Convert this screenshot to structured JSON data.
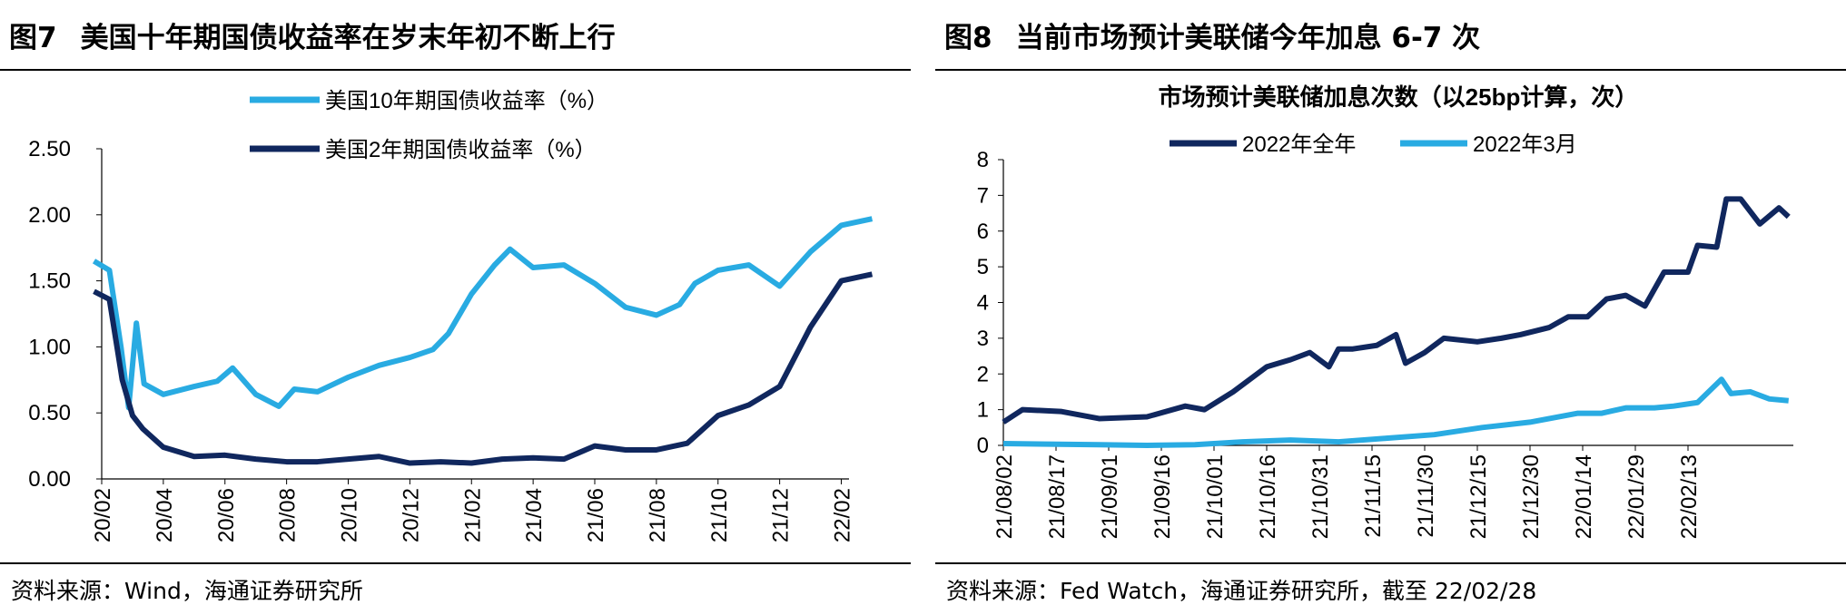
{
  "colors": {
    "light": "#29abe2",
    "dark": "#10275e"
  },
  "left": {
    "fig_no": "图7",
    "title": "美国十年期国债收益率在岁末年初不断上行",
    "source": "资料来源：Wind，海通证券研究所"
  },
  "right": {
    "fig_no": "图8",
    "title": "当前市场预计美联储今年加息 6-7 次",
    "source": "资料来源：Fed Watch，海通证券研究所，截至 22/02/28"
  },
  "chart_data": [
    {
      "type": "line",
      "title": "",
      "ylim": [
        0,
        2.5
      ],
      "yticks": [
        "0.00",
        "0.50",
        "1.00",
        "1.50",
        "2.00",
        "2.50"
      ],
      "xticks": [
        "20/02",
        "20/04",
        "20/06",
        "20/08",
        "20/10",
        "20/12",
        "21/02",
        "21/04",
        "21/06",
        "21/08",
        "21/10",
        "21/12",
        "22/02"
      ],
      "legend": "top-center",
      "series": [
        {
          "name": "美国10年期国债收益率（%）",
          "color": "light",
          "points": [
            [
              "20/02",
              1.65
            ],
            [
              "20/02",
              1.58
            ],
            [
              "20/03",
              1.0
            ],
            [
              "20/03",
              0.54
            ],
            [
              "20/03",
              1.18
            ],
            [
              "20/03",
              0.72
            ],
            [
              "20/04",
              0.64
            ],
            [
              "20/05",
              0.7
            ],
            [
              "20/06",
              0.74
            ],
            [
              "20/06",
              0.84
            ],
            [
              "20/07",
              0.64
            ],
            [
              "20/08",
              0.55
            ],
            [
              "20/08",
              0.68
            ],
            [
              "20/09",
              0.66
            ],
            [
              "20/10",
              0.77
            ],
            [
              "20/11",
              0.86
            ],
            [
              "20/12",
              0.92
            ],
            [
              "21/01",
              0.98
            ],
            [
              "21/01",
              1.1
            ],
            [
              "21/02",
              1.4
            ],
            [
              "21/03",
              1.62
            ],
            [
              "21/03",
              1.74
            ],
            [
              "21/04",
              1.6
            ],
            [
              "21/05",
              1.62
            ],
            [
              "21/06",
              1.48
            ],
            [
              "21/07",
              1.3
            ],
            [
              "21/08",
              1.24
            ],
            [
              "21/09",
              1.32
            ],
            [
              "21/09",
              1.48
            ],
            [
              "21/10",
              1.58
            ],
            [
              "21/11",
              1.62
            ],
            [
              "21/12",
              1.46
            ],
            [
              "22/01",
              1.72
            ],
            [
              "22/02",
              1.92
            ],
            [
              "22/03",
              1.97
            ]
          ]
        },
        {
          "name": "美国2年期国债收益率（%）",
          "color": "dark",
          "points": [
            [
              "20/02",
              1.42
            ],
            [
              "20/02",
              1.36
            ],
            [
              "20/03",
              0.75
            ],
            [
              "20/03",
              0.48
            ],
            [
              "20/03",
              0.38
            ],
            [
              "20/04",
              0.24
            ],
            [
              "20/05",
              0.17
            ],
            [
              "20/06",
              0.18
            ],
            [
              "20/07",
              0.15
            ],
            [
              "20/08",
              0.13
            ],
            [
              "20/09",
              0.13
            ],
            [
              "20/10",
              0.15
            ],
            [
              "20/11",
              0.17
            ],
            [
              "20/12",
              0.12
            ],
            [
              "21/01",
              0.13
            ],
            [
              "21/02",
              0.12
            ],
            [
              "21/03",
              0.15
            ],
            [
              "21/04",
              0.16
            ],
            [
              "21/05",
              0.15
            ],
            [
              "21/06",
              0.25
            ],
            [
              "21/07",
              0.22
            ],
            [
              "21/08",
              0.22
            ],
            [
              "21/09",
              0.27
            ],
            [
              "21/10",
              0.48
            ],
            [
              "21/11",
              0.56
            ],
            [
              "21/12",
              0.7
            ],
            [
              "22/01",
              1.15
            ],
            [
              "22/02",
              1.5
            ],
            [
              "22/03",
              1.55
            ]
          ]
        }
      ]
    },
    {
      "type": "line",
      "title": "市场预计美联储加息次数（以25bp计算，次）",
      "ylim": [
        0,
        8
      ],
      "yticks": [
        "0",
        "1",
        "2",
        "3",
        "4",
        "5",
        "6",
        "7",
        "8"
      ],
      "xticks": [
        "21/08/02",
        "21/08/17",
        "21/09/01",
        "21/09/16",
        "21/10/01",
        "21/10/16",
        "21/10/31",
        "21/11/15",
        "21/11/30",
        "21/12/15",
        "21/12/30",
        "22/01/14",
        "22/01/29",
        "22/02/13"
      ],
      "legend": "top-center",
      "series": [
        {
          "name": "2022年全年",
          "color": "dark",
          "points": [
            [
              0,
              0.65
            ],
            [
              4,
              1.0
            ],
            [
              12,
              0.95
            ],
            [
              20,
              0.75
            ],
            [
              30,
              0.8
            ],
            [
              38,
              1.1
            ],
            [
              42,
              1.0
            ],
            [
              48,
              1.5
            ],
            [
              55,
              2.2
            ],
            [
              60,
              2.4
            ],
            [
              64,
              2.6
            ],
            [
              68,
              2.2
            ],
            [
              70,
              2.7
            ],
            [
              73,
              2.7
            ],
            [
              78,
              2.8
            ],
            [
              82,
              3.1
            ],
            [
              84,
              2.3
            ],
            [
              88,
              2.6
            ],
            [
              92,
              3.0
            ],
            [
              99,
              2.9
            ],
            [
              104,
              3.0
            ],
            [
              108,
              3.1
            ],
            [
              114,
              3.3
            ],
            [
              118,
              3.6
            ],
            [
              122,
              3.6
            ],
            [
              126,
              4.1
            ],
            [
              130,
              4.2
            ],
            [
              134,
              3.9
            ],
            [
              138,
              4.85
            ],
            [
              143,
              4.85
            ],
            [
              145,
              5.6
            ],
            [
              149,
              5.55
            ],
            [
              151,
              6.9
            ],
            [
              154,
              6.9
            ],
            [
              158,
              6.2
            ],
            [
              162,
              6.65
            ],
            [
              164,
              6.4
            ]
          ]
        },
        {
          "name": "2022年3月",
          "color": "light",
          "points": [
            [
              0,
              0.05
            ],
            [
              20,
              0.02
            ],
            [
              30,
              0.0
            ],
            [
              40,
              0.02
            ],
            [
              50,
              0.1
            ],
            [
              60,
              0.15
            ],
            [
              70,
              0.1
            ],
            [
              80,
              0.2
            ],
            [
              90,
              0.3
            ],
            [
              100,
              0.5
            ],
            [
              110,
              0.65
            ],
            [
              120,
              0.9
            ],
            [
              125,
              0.9
            ],
            [
              130,
              1.05
            ],
            [
              136,
              1.05
            ],
            [
              140,
              1.1
            ],
            [
              145,
              1.2
            ],
            [
              150,
              1.85
            ],
            [
              152,
              1.45
            ],
            [
              156,
              1.5
            ],
            [
              160,
              1.3
            ],
            [
              164,
              1.25
            ]
          ]
        }
      ]
    }
  ]
}
